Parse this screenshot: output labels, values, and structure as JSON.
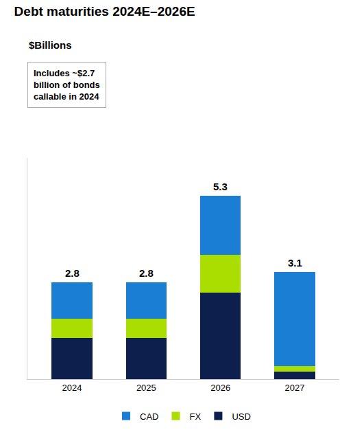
{
  "chart_data": {
    "type": "bar",
    "stacked": true,
    "title": "Debt maturities 2024E–2026E",
    "ylabel": "$Billions",
    "annotation": "Includes ~$2.7\nbillion of bonds\ncallable in 2024",
    "categories": [
      "2024",
      "2025",
      "2026",
      "2027"
    ],
    "series": [
      {
        "name": "USD",
        "color": "#0d1f4c",
        "values": [
          1.2,
          1.2,
          2.5,
          0.22
        ]
      },
      {
        "name": "FX",
        "color": "#aadd00",
        "values": [
          0.55,
          0.55,
          1.1,
          0.15
        ]
      },
      {
        "name": "CAD",
        "color": "#1a7fd4",
        "values": [
          1.05,
          1.05,
          1.7,
          2.73
        ]
      }
    ],
    "totals": [
      2.8,
      2.8,
      5.3,
      3.1
    ],
    "ylim": [
      0,
      6.4
    ],
    "yticks": [],
    "tick_labels": "x",
    "grid": false,
    "legend": "bottom"
  }
}
